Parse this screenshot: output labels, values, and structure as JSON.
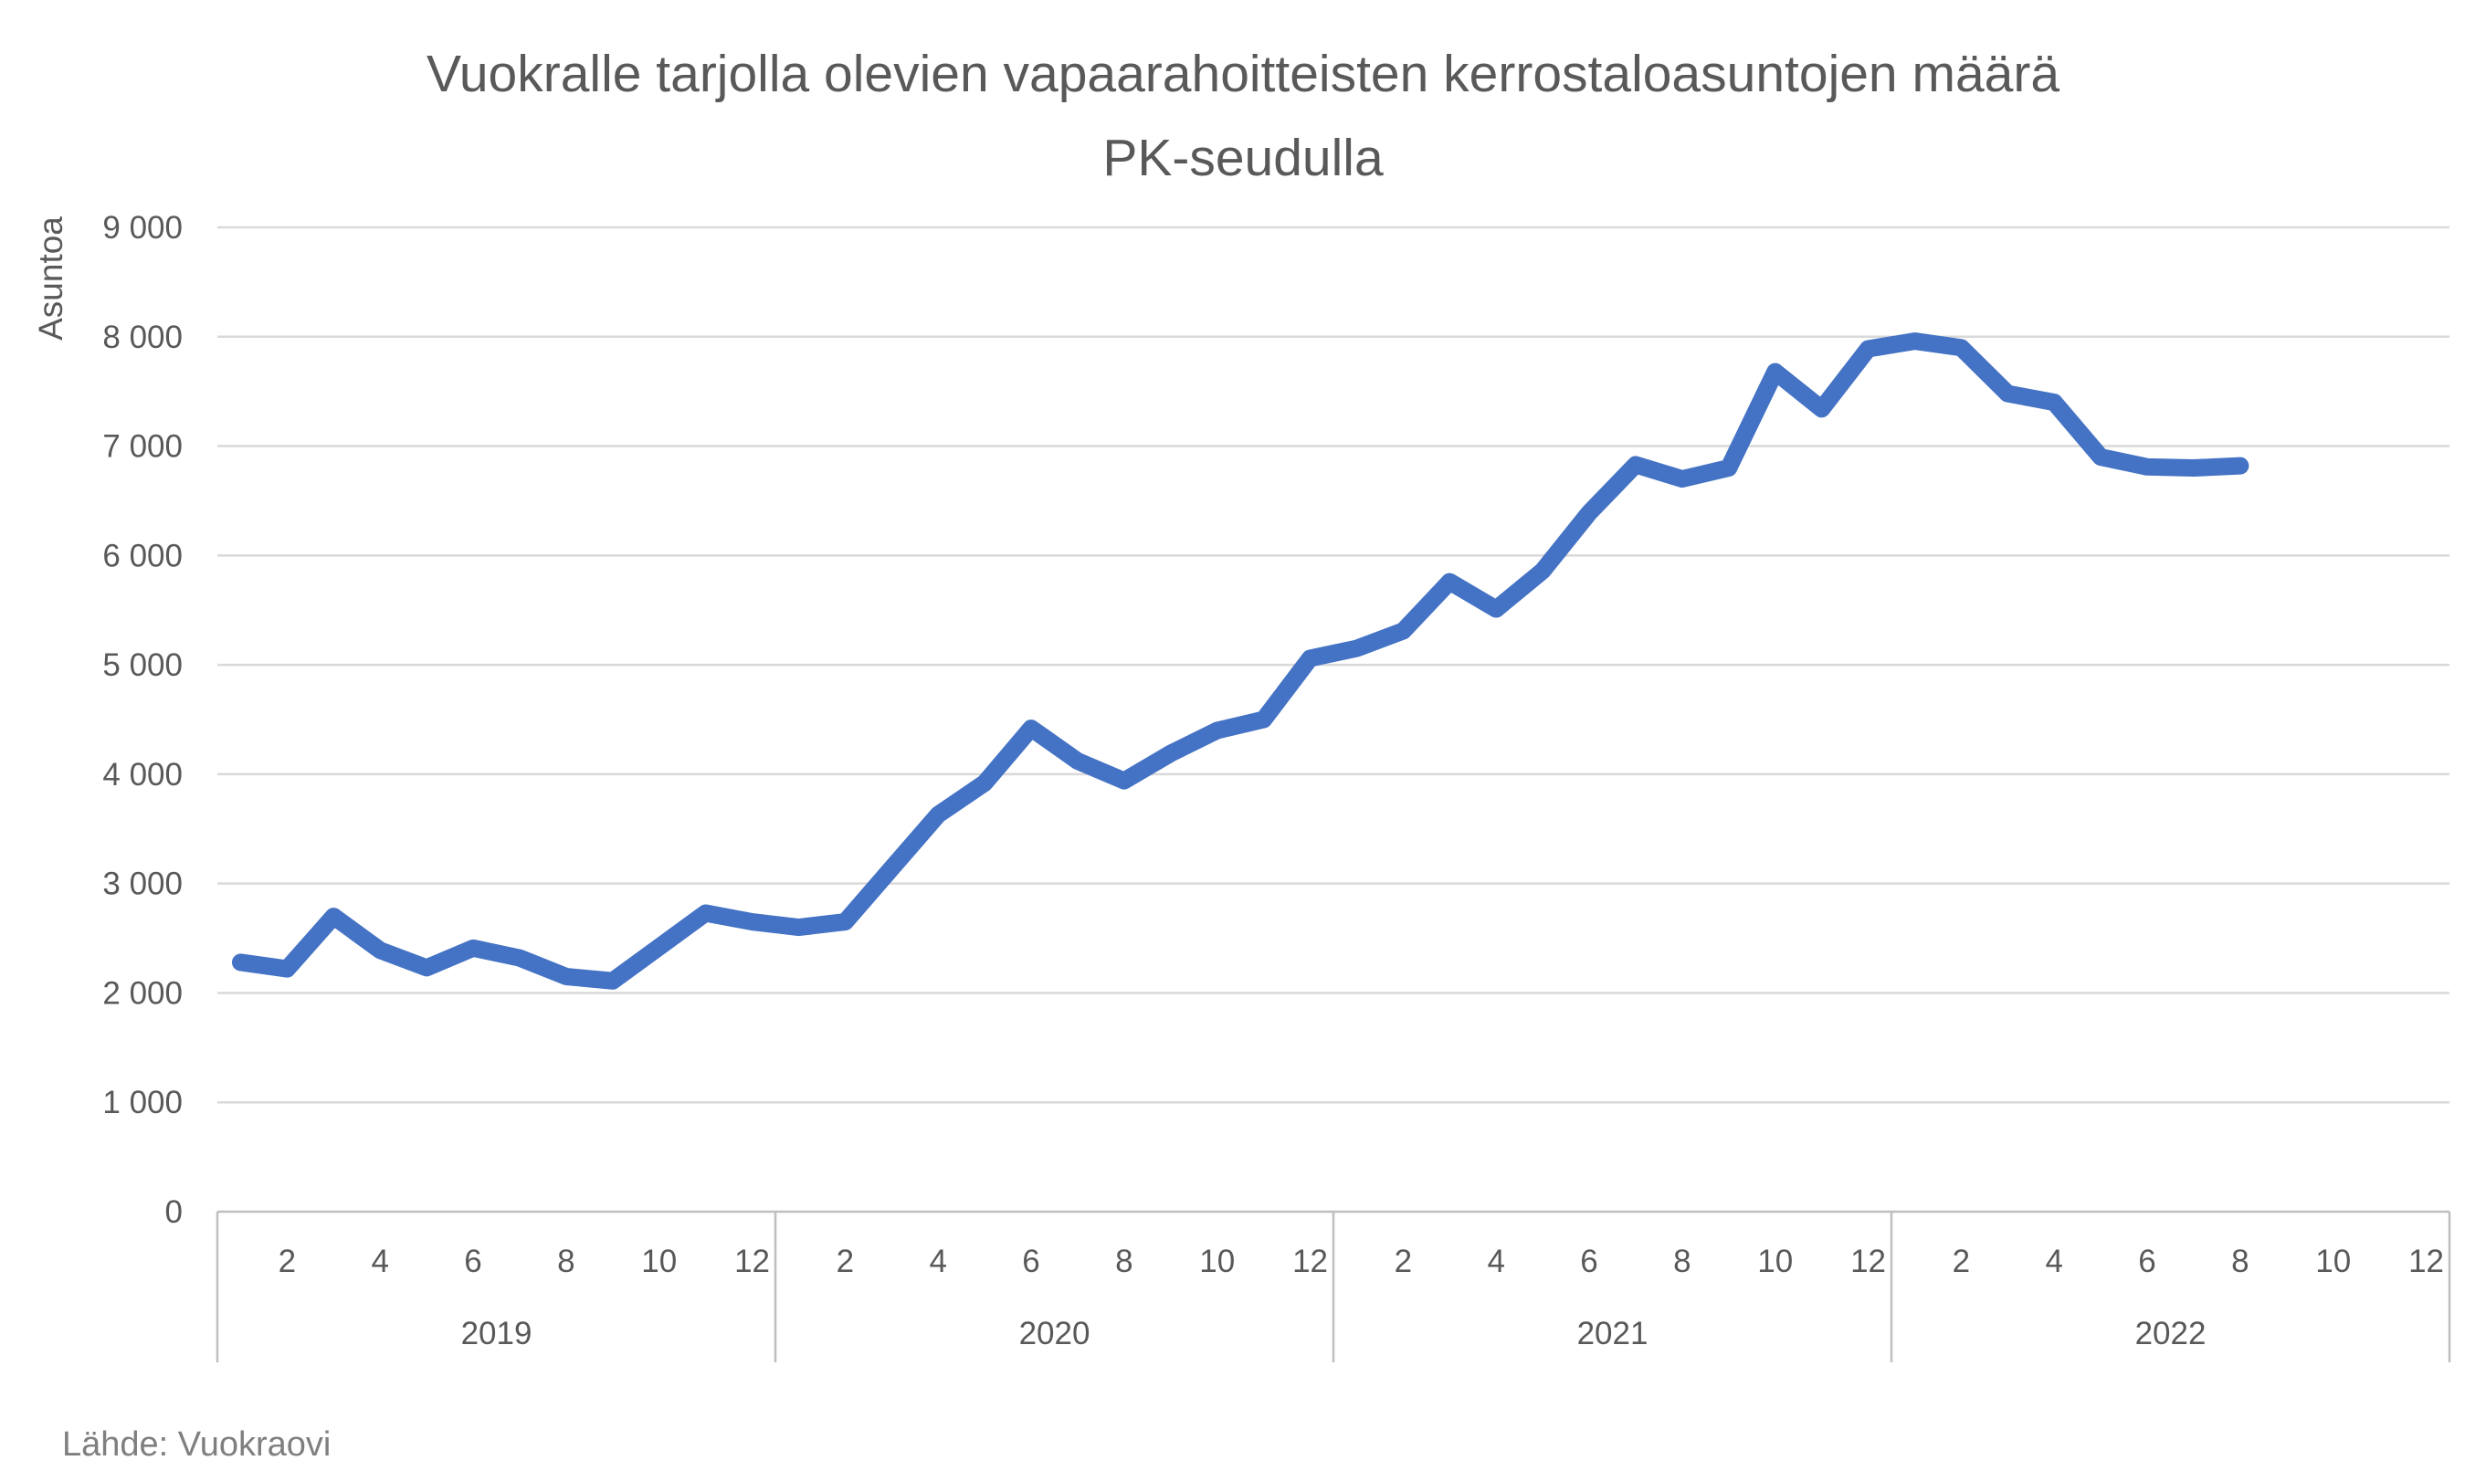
{
  "chart_data": {
    "type": "line",
    "title_lines": [
      "Vuokralle tarjolla olevien vapaarahoitteisten kerrostaloasuntojen määrä",
      "PK-seudulla"
    ],
    "ylabel": "Asuntoa",
    "xlabel": "",
    "ylim": [
      0,
      9000
    ],
    "y_ticks": [
      0,
      1000,
      2000,
      3000,
      4000,
      5000,
      6000,
      7000,
      8000,
      9000
    ],
    "y_tick_labels": [
      "0",
      "1 000",
      "2 000",
      "3 000",
      "4 000",
      "5 000",
      "6 000",
      "7 000",
      "8 000",
      "9 000"
    ],
    "years": [
      "2019",
      "2020",
      "2021",
      "2022"
    ],
    "month_tick_labels": [
      "2",
      "4",
      "6",
      "8",
      "10",
      "12"
    ],
    "grid": true,
    "legend": "none",
    "line_color": "#4472C4",
    "series": [
      {
        "values": [
          2280,
          2220,
          2700,
          2390,
          2230,
          2410,
          2320,
          2150,
          2110,
          2420,
          2730,
          2650,
          2600,
          2650,
          3140,
          3630,
          3920,
          4420,
          4120,
          3940,
          4190,
          4400,
          4500,
          5060,
          5150,
          5310,
          5760,
          5510,
          5860,
          6390,
          6830,
          6700,
          6800,
          7680,
          7340,
          7890,
          7960,
          7900,
          7480,
          7400,
          6900,
          6810,
          6800,
          6820
        ]
      }
    ]
  },
  "source": "Lähde: Vuokraovi"
}
